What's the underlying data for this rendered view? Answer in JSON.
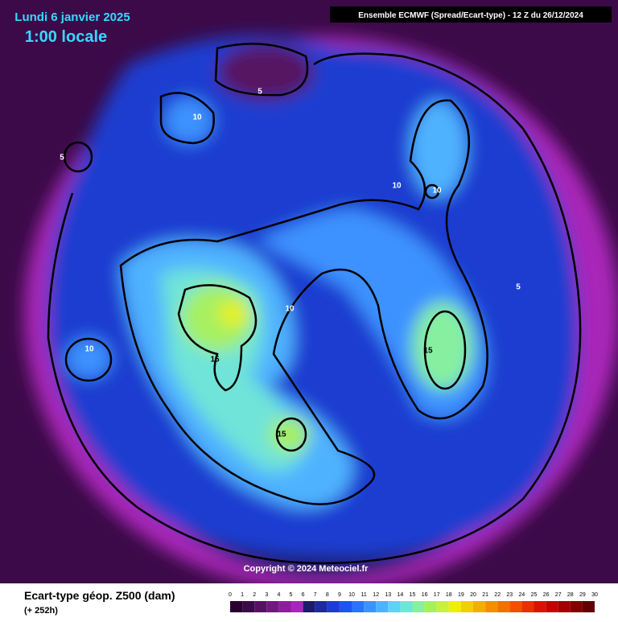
{
  "header": {
    "date": "Lundi 6 janvier 2025",
    "time": "1:00 locale",
    "source": "Ensemble ECMWF  (Spread/Ecart-type) - 12 Z du 26/12/2024"
  },
  "map": {
    "contour_labels": [
      "5",
      "10",
      "5",
      "10",
      "10",
      "5",
      "10",
      "10",
      "15",
      "15",
      "15"
    ],
    "copyright": "Copyright © 2024 Meteociel.fr"
  },
  "legend": {
    "title": "Ecart-type géop. Z500 (dam)",
    "lead": "(+ 252h)",
    "ticks": [
      0,
      1,
      2,
      3,
      4,
      5,
      6,
      7,
      8,
      9,
      10,
      11,
      12,
      13,
      14,
      15,
      16,
      17,
      18,
      19,
      20,
      21,
      22,
      23,
      24,
      25,
      26,
      27,
      28,
      29,
      30
    ],
    "colors": [
      "#2a0030",
      "#3c0a48",
      "#561262",
      "#70187e",
      "#8c1e9c",
      "#a826b8",
      "#1c1c6a",
      "#1e2a9e",
      "#1e3cd0",
      "#1e54f0",
      "#2a72ff",
      "#3c92ff",
      "#50b2ff",
      "#62d0f8",
      "#70e4d8",
      "#86f0a0",
      "#a6f060",
      "#c8f040",
      "#eef000",
      "#f0d000",
      "#f0b000",
      "#f09000",
      "#f07000",
      "#f05000",
      "#e83000",
      "#e01000",
      "#c80000",
      "#a00000",
      "#800000",
      "#600000"
    ]
  }
}
